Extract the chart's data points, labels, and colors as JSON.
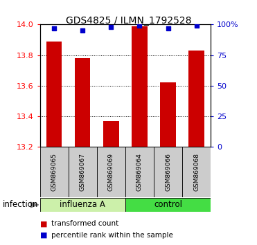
{
  "title": "GDS4825 / ILMN_1792528",
  "categories": [
    "GSM869065",
    "GSM869067",
    "GSM869069",
    "GSM869064",
    "GSM869066",
    "GSM869068"
  ],
  "red_values": [
    13.89,
    13.78,
    13.37,
    13.99,
    13.62,
    13.83
  ],
  "blue_values": [
    97,
    95,
    98,
    99,
    97,
    99
  ],
  "ylim_left": [
    13.2,
    14.0
  ],
  "ylim_right": [
    0,
    100
  ],
  "yticks_left": [
    13.2,
    13.4,
    13.6,
    13.8,
    14.0
  ],
  "yticks_right": [
    0,
    25,
    50,
    75,
    100
  ],
  "ytick_labels_right": [
    "0",
    "25",
    "50",
    "75",
    "100%"
  ],
  "group1_label": "influenza A",
  "group2_label": "control",
  "group1_indices": [
    0,
    1,
    2
  ],
  "group2_indices": [
    3,
    4,
    5
  ],
  "group1_color": "#ccf0aa",
  "group2_color": "#44dd44",
  "bar_color": "#cc0000",
  "dot_color": "#0000cc",
  "xlabel_group": "infection",
  "legend_red": "transformed count",
  "legend_blue": "percentile rank within the sample",
  "label_bg_color": "#cccccc",
  "bar_width": 0.55
}
